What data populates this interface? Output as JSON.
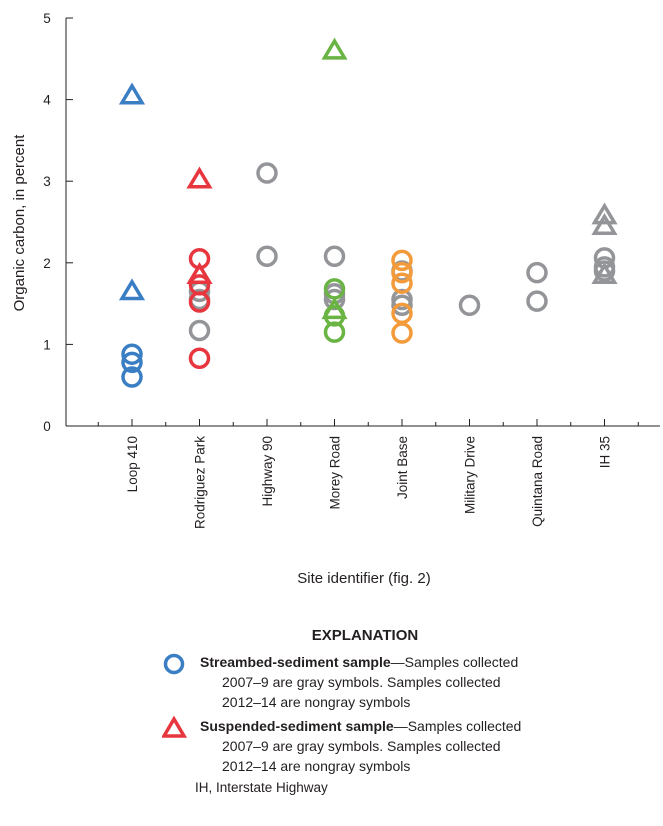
{
  "chart_data": {
    "type": "scatter",
    "title": "",
    "xlabel": "Site identifier (fig. 2)",
    "ylabel": "Organic carbon, in percent",
    "ylim": [
      0,
      5
    ],
    "yticks": [
      0,
      1,
      2,
      3,
      4,
      5
    ],
    "categories": [
      "Loop 410",
      "Rodriguez Park",
      "Highway 90",
      "Morey Road",
      "Joint Base",
      "Military Drive",
      "Quintana Road",
      "IH 35"
    ],
    "colors": {
      "gray": "#939598",
      "blue": "#3a7ec3",
      "red": "#e8363f",
      "green": "#6ab443",
      "orange": "#f39a3b"
    },
    "series": [
      {
        "marker": "circle",
        "color": "gray",
        "period": "2007-9",
        "points": [
          {
            "site": "Rodriguez Park",
            "value": 1.17
          },
          {
            "site": "Rodriguez Park",
            "value": 1.55
          },
          {
            "site": "Rodriguez Park",
            "value": 1.65
          },
          {
            "site": "Highway 90",
            "value": 3.1
          },
          {
            "site": "Highway 90",
            "value": 2.08
          },
          {
            "site": "Morey Road",
            "value": 2.08
          },
          {
            "site": "Morey Road",
            "value": 1.62
          },
          {
            "site": "Morey Road",
            "value": 1.55
          },
          {
            "site": "Joint Base",
            "value": 1.9
          },
          {
            "site": "Joint Base",
            "value": 1.55
          },
          {
            "site": "Joint Base",
            "value": 1.48
          },
          {
            "site": "Military Drive",
            "value": 1.48
          },
          {
            "site": "Quintana Road",
            "value": 1.88
          },
          {
            "site": "Quintana Road",
            "value": 1.53
          },
          {
            "site": "IH 35",
            "value": 2.06
          },
          {
            "site": "IH 35",
            "value": 1.95
          },
          {
            "site": "IH 35",
            "value": 1.9
          }
        ]
      },
      {
        "marker": "triangle",
        "color": "gray",
        "period": "2007-9",
        "points": [
          {
            "site": "IH 35",
            "value": 2.58
          },
          {
            "site": "IH 35",
            "value": 2.45
          },
          {
            "site": "IH 35",
            "value": 1.85
          }
        ]
      },
      {
        "marker": "circle",
        "color": "blue",
        "period": "2012-14",
        "points": [
          {
            "site": "Loop 410",
            "value": 0.88
          },
          {
            "site": "Loop 410",
            "value": 0.78
          },
          {
            "site": "Loop 410",
            "value": 0.6
          }
        ]
      },
      {
        "marker": "triangle",
        "color": "blue",
        "period": "2012-14",
        "points": [
          {
            "site": "Loop 410",
            "value": 4.05
          },
          {
            "site": "Loop 410",
            "value": 1.65
          }
        ]
      },
      {
        "marker": "circle",
        "color": "red",
        "period": "2012-14",
        "points": [
          {
            "site": "Rodriguez Park",
            "value": 2.05
          },
          {
            "site": "Rodriguez Park",
            "value": 1.73
          },
          {
            "site": "Rodriguez Park",
            "value": 1.52
          },
          {
            "site": "Rodriguez Park",
            "value": 0.83
          }
        ]
      },
      {
        "marker": "triangle",
        "color": "red",
        "period": "2012-14",
        "points": [
          {
            "site": "Rodriguez Park",
            "value": 3.02
          },
          {
            "site": "Rodriguez Park",
            "value": 1.85
          }
        ]
      },
      {
        "marker": "circle",
        "color": "green",
        "period": "2012-14",
        "points": [
          {
            "site": "Morey Road",
            "value": 1.68
          },
          {
            "site": "Morey Road",
            "value": 1.35
          },
          {
            "site": "Morey Road",
            "value": 1.15
          }
        ]
      },
      {
        "marker": "triangle",
        "color": "green",
        "period": "2012-14",
        "points": [
          {
            "site": "Morey Road",
            "value": 4.6
          },
          {
            "site": "Morey Road",
            "value": 1.42
          }
        ]
      },
      {
        "marker": "circle",
        "color": "orange",
        "period": "2012-14",
        "points": [
          {
            "site": "Joint Base",
            "value": 2.03
          },
          {
            "site": "Joint Base",
            "value": 1.88
          },
          {
            "site": "Joint Base",
            "value": 1.75
          },
          {
            "site": "Joint Base",
            "value": 1.38
          },
          {
            "site": "Joint Base",
            "value": 1.14
          }
        ]
      }
    ]
  },
  "legend": {
    "heading": "EXPLANATION",
    "entries": [
      {
        "marker": "circle",
        "color": "blue",
        "bold": "Streambed-sediment sample",
        "line1": "—Samples collected",
        "line2": "2007–9 are gray symbols. Samples collected",
        "line3": "2012–14 are nongray symbols"
      },
      {
        "marker": "triangle",
        "color": "red",
        "bold": "Suspended-sediment sample",
        "line1": "—Samples collected",
        "line2": "2007–9 are gray symbols. Samples collected",
        "line3": "2012–14 are nongray symbols"
      }
    ]
  },
  "footnote": "IH, Interstate Highway"
}
